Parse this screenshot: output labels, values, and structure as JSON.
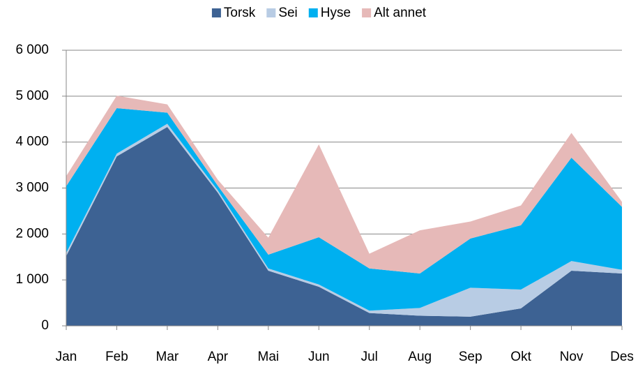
{
  "chart_data": {
    "type": "stacked_area",
    "categories": [
      "Jan",
      "Feb",
      "Mar",
      "Apr",
      "Mai",
      "Jun",
      "Jul",
      "Aug",
      "Sep",
      "Okt",
      "Nov",
      "Des"
    ],
    "series": [
      {
        "name": "Torsk",
        "color": "#3d6293",
        "values": [
          1520,
          3690,
          4330,
          2900,
          1200,
          850,
          280,
          220,
          200,
          380,
          1200,
          1140
        ]
      },
      {
        "name": "Sei",
        "color": "#b8cce4",
        "values": [
          70,
          60,
          70,
          50,
          50,
          50,
          50,
          170,
          630,
          410,
          210,
          80
        ]
      },
      {
        "name": "Hyse",
        "color": "#00b0f0",
        "values": [
          1450,
          990,
          240,
          100,
          300,
          1030,
          920,
          750,
          1070,
          1400,
          2250,
          1370
        ]
      },
      {
        "name": "Alt annet",
        "color": "#e6b9b8",
        "values": [
          220,
          270,
          180,
          130,
          370,
          2020,
          320,
          940,
          370,
          430,
          540,
          110
        ]
      }
    ],
    "ylim": [
      0,
      6000
    ],
    "yticks": [
      0,
      {
        "value": 1000,
        "label": "1 000"
      },
      {
        "value": 2000,
        "label": "2 000"
      },
      {
        "value": 3000,
        "label": "3 000"
      },
      {
        "value": 4000,
        "label": "4 000"
      },
      {
        "value": 5000,
        "label": "5 000"
      },
      {
        "value": 6000,
        "label": "6 000"
      }
    ],
    "grid": true,
    "legend": "top"
  }
}
